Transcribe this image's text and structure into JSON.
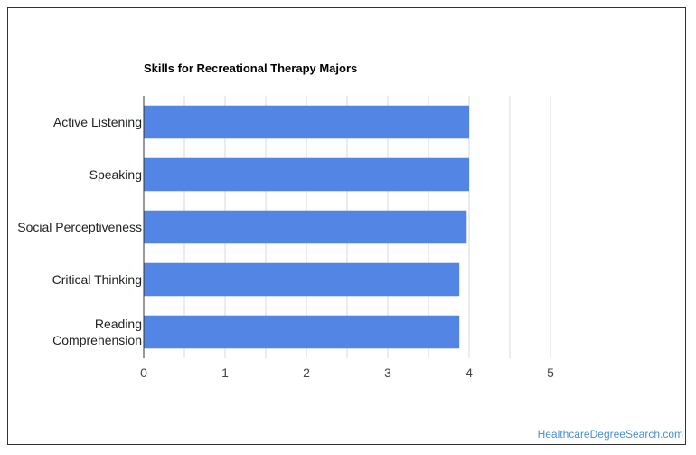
{
  "chart_data": {
    "type": "bar",
    "orientation": "horizontal",
    "title": "Skills for Recreational Therapy Majors",
    "categories": [
      "Active Listening",
      "Speaking",
      "Social Perceptiveness",
      "Critical Thinking",
      "Reading Comprehension"
    ],
    "category_lines": [
      [
        "Active Listening"
      ],
      [
        "Speaking"
      ],
      [
        "Social Perceptiveness"
      ],
      [
        "Critical Thinking"
      ],
      [
        "Reading",
        "Comprehension"
      ]
    ],
    "values": [
      4.0,
      4.0,
      3.97,
      3.88,
      3.88
    ],
    "xlim": [
      0,
      5
    ],
    "x_ticks": [
      0,
      1,
      2,
      3,
      4,
      5
    ],
    "xlabel": "",
    "ylabel": "",
    "grid": "vertical",
    "bar_color": "#5385e4",
    "grid_color": "#d9d9d9",
    "axis_color": "#333333"
  },
  "footer": {
    "link": "HealthcareDegreeSearch.com",
    "link_color": "#4a90d9"
  }
}
